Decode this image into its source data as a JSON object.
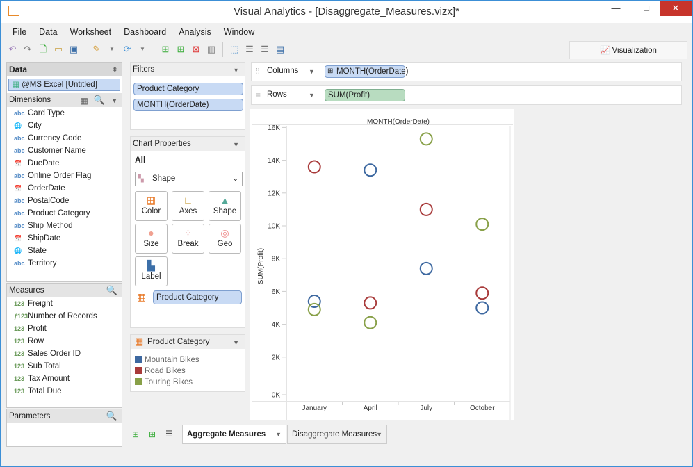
{
  "window": {
    "title": "Visual Analytics - [Disaggregate_Measures.vizx]*",
    "min": "—",
    "max": "□",
    "close": "✕"
  },
  "menu": [
    "File",
    "Data",
    "Worksheet",
    "Dashboard",
    "Analysis",
    "Window"
  ],
  "toolbar": {
    "icons": [
      "undo-icon",
      "redo-icon",
      "new-icon",
      "open-icon",
      "save-icon",
      "connect-icon",
      "refresh-icon",
      "add-chart-icon",
      "add-dashboard-icon",
      "delete-chart-icon",
      "clear-chart-icon",
      "fit-icon",
      "sort-asc-icon",
      "sort-desc-icon",
      "show-me-icon"
    ]
  },
  "vis_tab": "Visualization",
  "data_panel": {
    "title": "Data",
    "source": "@MS Excel [Untitled]"
  },
  "dimensions": {
    "title": "Dimensions",
    "items": [
      {
        "type": "abc",
        "label": "Card Type"
      },
      {
        "type": "geo",
        "label": "City"
      },
      {
        "type": "abc",
        "label": "Currency Code"
      },
      {
        "type": "abc",
        "label": "Customer Name"
      },
      {
        "type": "date",
        "label": "DueDate"
      },
      {
        "type": "abc",
        "label": "Online Order Flag"
      },
      {
        "type": "date",
        "label": "OrderDate"
      },
      {
        "type": "abc",
        "label": "PostalCode"
      },
      {
        "type": "abc",
        "label": "Product Category"
      },
      {
        "type": "abc",
        "label": "Ship Method"
      },
      {
        "type": "date",
        "label": "ShipDate"
      },
      {
        "type": "geo",
        "label": "State"
      },
      {
        "type": "abc",
        "label": "Territory"
      }
    ]
  },
  "measures": {
    "title": "Measures",
    "items": [
      {
        "type": "123",
        "label": "Freight"
      },
      {
        "type": "f123",
        "label": "Number of Records"
      },
      {
        "type": "123",
        "label": "Profit"
      },
      {
        "type": "123",
        "label": "Row"
      },
      {
        "type": "123",
        "label": "Sales Order ID"
      },
      {
        "type": "123",
        "label": "Sub Total"
      },
      {
        "type": "123",
        "label": "Tax Amount"
      },
      {
        "type": "123",
        "label": "Total Due"
      }
    ]
  },
  "parameters": {
    "title": "Parameters"
  },
  "filters": {
    "title": "Filters",
    "items": [
      "Product Category",
      "MONTH(OrderDate)"
    ]
  },
  "chart_properties": {
    "title": "Chart Properties",
    "scope": "All",
    "mark_type": "Shape",
    "buttons": [
      "Color",
      "Axes",
      "Shape",
      "Size",
      "Break",
      "Geo",
      "Label"
    ],
    "color_field": "Product Category"
  },
  "legend": {
    "title": "Product Category",
    "items": [
      {
        "label": "Mountain Bikes",
        "color": "#3d68a0"
      },
      {
        "label": "Road Bikes",
        "color": "#a83a3a"
      },
      {
        "label": "Touring Bikes",
        "color": "#88a048"
      }
    ]
  },
  "shelves": {
    "columns_label": "Columns",
    "columns_pill": "MONTH(OrderDate)",
    "rows_label": "Rows",
    "rows_pill": "SUM(Profit)"
  },
  "chart_data": {
    "type": "scatter",
    "title": "MONTH(OrderDate)",
    "xlabel": "",
    "ylabel": "SUM(Profit)",
    "categories": [
      "January",
      "April",
      "July",
      "October"
    ],
    "yticks": [
      "0K",
      "2K",
      "4K",
      "6K",
      "8K",
      "10K",
      "12K",
      "14K",
      "16K"
    ],
    "ylim": [
      0,
      16500
    ],
    "marker": "open-circle",
    "series": [
      {
        "name": "Mountain Bikes",
        "color": "#3d68a0",
        "values": [
          5400,
          13400,
          7400,
          5000
        ]
      },
      {
        "name": "Road Bikes",
        "color": "#a83a3a",
        "values": [
          13600,
          5300,
          11000,
          5900
        ]
      },
      {
        "name": "Touring Bikes",
        "color": "#88a048",
        "values": [
          4900,
          4100,
          15300,
          10100
        ]
      }
    ]
  },
  "sheets": [
    {
      "label": "Aggregate Measures",
      "active": true
    },
    {
      "label": "Disaggregate Measures",
      "active": false
    }
  ]
}
